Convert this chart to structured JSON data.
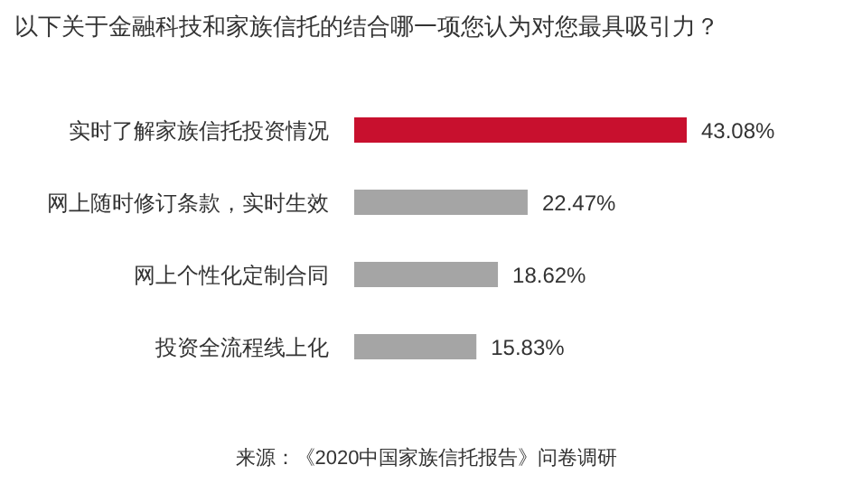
{
  "chart_data": {
    "type": "bar",
    "orientation": "horizontal",
    "title": "以下关于金融科技和家族信托的结合哪一项您认为对您最具吸引力？",
    "categories": [
      "实时了解家族信托投资情况",
      "网上随时修订条款，实时生效",
      "网上个性化定制合同",
      "投资全流程线上化"
    ],
    "values": [
      43.08,
      22.47,
      18.62,
      15.83
    ],
    "value_labels": [
      "43.08%",
      "22.47%",
      "18.62%",
      "15.83%"
    ],
    "colors": [
      "#c8102e",
      "#a5a5a5",
      "#a5a5a5",
      "#a5a5a5"
    ],
    "annotations": [
      "来源：《2020中国家族信托报告》问卷调研"
    ]
  }
}
